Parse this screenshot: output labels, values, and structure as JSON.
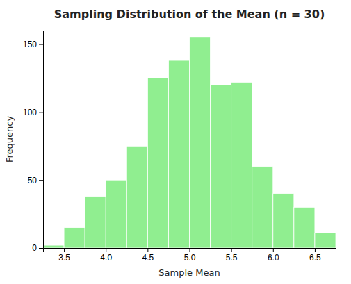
{
  "chart_data": {
    "type": "histogram",
    "title": "Sampling Distribution of the Mean (n = 30)",
    "x_label": "Sample Mean",
    "y_label": "Frequency",
    "bins": [
      3.25,
      3.5,
      3.75,
      4.0,
      4.25,
      4.5,
      4.75,
      5.0,
      5.25,
      5.5,
      5.75,
      6.0,
      6.25,
      6.5,
      6.75
    ],
    "values": [
      2,
      15,
      38,
      50,
      75,
      125,
      138,
      155,
      120,
      122,
      60,
      40,
      30,
      11
    ],
    "color": "#90EE90",
    "xlim": [
      3.25,
      6.75
    ],
    "ylim": [
      0,
      160
    ],
    "xticks": [
      3.5,
      {
        "value": 4.0,
        "label": "4.0"
      },
      4.5,
      {
        "value": 5.0,
        "label": "5.0"
      },
      5.5,
      {
        "value": 6.0,
        "label": "6.0"
      },
      6.5
    ],
    "yticks": [
      0,
      50,
      100,
      150
    ],
    "grid": false
  }
}
